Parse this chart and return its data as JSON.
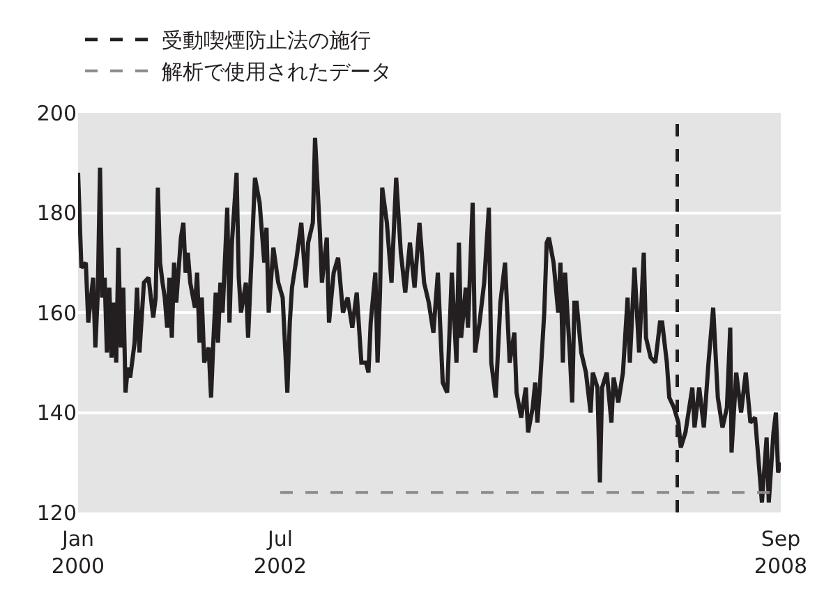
{
  "chart_data": {
    "type": "line",
    "xlim": [
      "2000-01-01",
      "2008-09-05"
    ],
    "ylim": [
      120,
      200
    ],
    "xticks": [
      {
        "value": "2000-01-01",
        "label": "Jan\n2000"
      },
      {
        "value": "2002-07-01",
        "label": "Jul\n2002"
      },
      {
        "value": "2008-09-05",
        "label": "Sep\n2008"
      }
    ],
    "yticks": [
      120,
      140,
      160,
      180,
      200
    ],
    "grid": "y",
    "legend": "top left",
    "ref_lines": [
      {
        "axis": "x",
        "value": "2007-05-27",
        "label": "受動喫煙防止法の施行",
        "color": "#231f20",
        "line_style": "dashed"
      }
    ],
    "series": [
      {
        "color": "#231f20",
        "line_style": "solid",
        "x": [
          "2000-01-01",
          "2000-01-16",
          "2000-02-05",
          "2000-02-16",
          "2000-03-09",
          "2000-03-19",
          "2000-03-30",
          "2000-04-09",
          "2000-04-19",
          "2000-04-30",
          "2000-05-10",
          "2000-05-21",
          "2000-05-31",
          "2000-06-11",
          "2000-06-21",
          "2000-07-01",
          "2000-07-12",
          "2000-07-23",
          "2000-08-02",
          "2000-08-12",
          "2000-08-23",
          "2000-09-12",
          "2000-09-23",
          "2000-10-04",
          "2000-10-24",
          "2000-11-14",
          "2000-12-05",
          "2000-12-16",
          "2000-12-26",
          "2001-01-05",
          "2001-01-16",
          "2001-01-26",
          "2001-02-06",
          "2001-02-16",
          "2001-02-27",
          "2001-03-09",
          "2001-03-19",
          "2001-04-09",
          "2001-04-20",
          "2001-04-30",
          "2001-05-10",
          "2001-05-21",
          "2001-06-11",
          "2001-06-21",
          "2001-07-02",
          "2001-07-12",
          "2001-07-23",
          "2001-08-12",
          "2001-08-23",
          "2001-09-02",
          "2001-09-13",
          "2001-09-23",
          "2001-10-04",
          "2001-10-14",
          "2001-11-04",
          "2001-11-14",
          "2001-11-25",
          "2001-12-16",
          "2001-12-26",
          "2002-01-05",
          "2002-01-27",
          "2002-02-06",
          "2002-03-09",
          "2002-03-30",
          "2002-04-20",
          "2002-04-30",
          "2002-05-10",
          "2002-05-31",
          "2002-06-22",
          "2002-07-12",
          "2002-08-02",
          "2002-08-13",
          "2002-08-23",
          "2002-09-13",
          "2002-10-04",
          "2002-10-25",
          "2002-11-04",
          "2002-11-25",
          "2002-12-05",
          "2002-12-27",
          "2003-01-05",
          "2003-01-27",
          "2003-02-06",
          "2003-02-27",
          "2003-03-19",
          "2003-04-10",
          "2003-05-01",
          "2003-05-22",
          "2003-06-11",
          "2003-07-02",
          "2003-07-23",
          "2003-08-03",
          "2003-08-13",
          "2003-09-03",
          "2003-09-13",
          "2003-09-24",
          "2003-10-04",
          "2003-10-25",
          "2003-11-15",
          "2003-12-06",
          "2003-12-27",
          "2004-01-16",
          "2004-02-06",
          "2004-02-27",
          "2004-03-20",
          "2004-04-10",
          "2004-05-01",
          "2004-05-22",
          "2004-06-11",
          "2004-07-03",
          "2004-07-23",
          "2004-08-13",
          "2004-09-03",
          "2004-09-14",
          "2004-09-24",
          "2004-10-15",
          "2004-10-25",
          "2004-11-15",
          "2004-11-26",
          "2004-12-16",
          "2005-01-06",
          "2005-01-27",
          "2005-02-07",
          "2005-02-27",
          "2005-03-20",
          "2005-04-10",
          "2005-05-01",
          "2005-05-22",
          "2005-06-01",
          "2005-06-22",
          "2005-07-13",
          "2005-07-23",
          "2005-08-13",
          "2005-08-24",
          "2005-09-03",
          "2005-09-14",
          "2005-10-04",
          "2005-10-15",
          "2005-10-25",
          "2005-11-15",
          "2005-12-06",
          "2005-12-16",
          "2005-12-27",
          "2006-01-06",
          "2006-01-27",
          "2006-02-07",
          "2006-02-17",
          "2006-02-27",
          "2006-03-20",
          "2006-04-10",
          "2006-05-01",
          "2006-05-11",
          "2006-06-01",
          "2006-06-12",
          "2006-06-22",
          "2006-07-13",
          "2006-08-03",
          "2006-08-13",
          "2006-09-03",
          "2006-09-24",
          "2006-10-15",
          "2006-10-25",
          "2006-11-15",
          "2006-12-06",
          "2006-12-27",
          "2007-01-06",
          "2007-01-27",
          "2007-02-17",
          "2007-03-10",
          "2007-03-20",
          "2007-04-10",
          "2007-04-21",
          "2007-05-12",
          "2007-06-01",
          "2007-06-12",
          "2007-07-03",
          "2007-08-03",
          "2007-08-13",
          "2007-09-03",
          "2007-09-24",
          "2007-10-15",
          "2007-11-05",
          "2007-11-26",
          "2007-12-17",
          "2008-01-06",
          "2008-01-21",
          "2008-01-27",
          "2008-02-17",
          "2008-03-10",
          "2008-03-31",
          "2008-04-21",
          "2008-05-12",
          "2008-06-01",
          "2008-06-12",
          "2008-07-03",
          "2008-07-13",
          "2008-08-03",
          "2008-08-14",
          "2008-08-24",
          "2008-09-04"
        ],
        "values": [
          188,
          169,
          170,
          158,
          167,
          153,
          164,
          189,
          163,
          167,
          152,
          165,
          151,
          162,
          150,
          173,
          153,
          165,
          144,
          149,
          147,
          154,
          165,
          152,
          166,
          167,
          159,
          163,
          185,
          170,
          166,
          163,
          157,
          167,
          155,
          170,
          162,
          175,
          178,
          168,
          172,
          166,
          161,
          168,
          154,
          163,
          150,
          153,
          143,
          154,
          164,
          154,
          166,
          160,
          181,
          158,
          174,
          188,
          167,
          160,
          166,
          155,
          187,
          182,
          170,
          177,
          160,
          173,
          166,
          163,
          144,
          158,
          165,
          171,
          178,
          165,
          174,
          178,
          195,
          176,
          166,
          175,
          158,
          168,
          171,
          160,
          163,
          157,
          164,
          150,
          150,
          148,
          158,
          168,
          150,
          164,
          185,
          178,
          166,
          187,
          172,
          164,
          174,
          165,
          178,
          166,
          162,
          156,
          168,
          146,
          144,
          168,
          150,
          174,
          155,
          165,
          157,
          182,
          152,
          158,
          166,
          181,
          150,
          143,
          162,
          170,
          150,
          156,
          144,
          139,
          145,
          136,
          141,
          146,
          138,
          145,
          160,
          174,
          175,
          170,
          160,
          170,
          150,
          168,
          152,
          142,
          162,
          162,
          152,
          148,
          140,
          148,
          145,
          126,
          145,
          148,
          138,
          147,
          142,
          148,
          163,
          150,
          169,
          152,
          172,
          155,
          151,
          150,
          158,
          158,
          150,
          143,
          141,
          138,
          133,
          136,
          145,
          137,
          145,
          137,
          150,
          161,
          143,
          137,
          141,
          157,
          132,
          148,
          140,
          148,
          138,
          139,
          128,
          122,
          135,
          122,
          136,
          140,
          128,
          130
        ]
      },
      {
        "name": "解析で使用されたデータ",
        "color": "#8a8a8a",
        "line_style": "dashed",
        "x": [
          "2002-07-01",
          "2008-09-05"
        ],
        "values": [
          124,
          124
        ]
      }
    ]
  }
}
